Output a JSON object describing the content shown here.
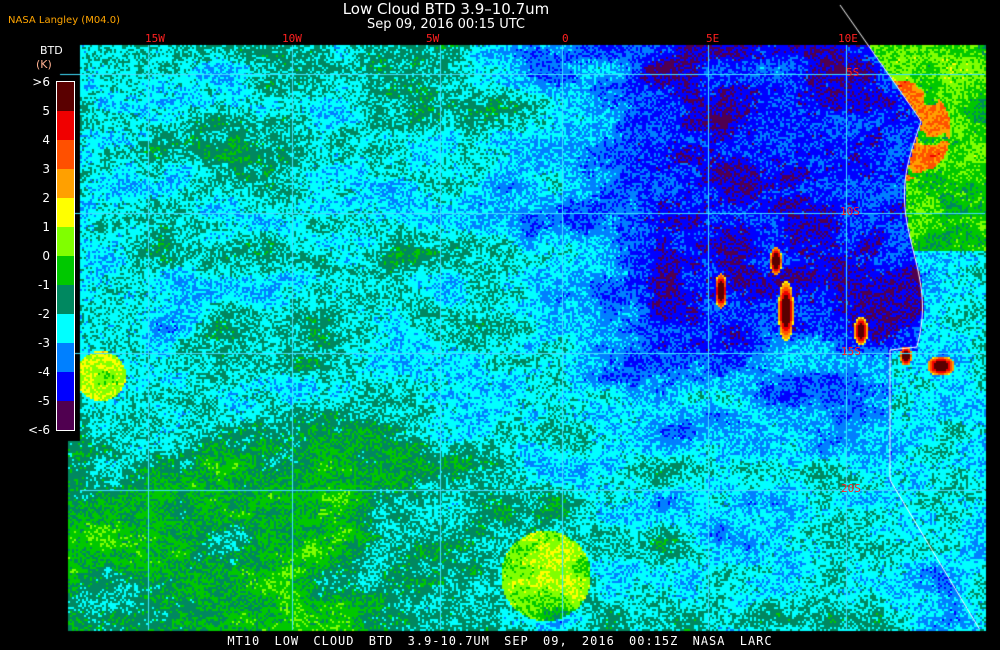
{
  "header": {
    "title": "Low Cloud BTD 3.9–10.7um",
    "subtitle": "Sep 09, 2016 00:15 UTC",
    "producer": "NASA Langley (M04.0)"
  },
  "grid": {
    "longitudes": [
      "15W",
      "10W",
      "5W",
      "0",
      "5E",
      "10E"
    ],
    "latitudes": [
      "5S",
      "10S",
      "15S",
      "20S"
    ],
    "line_color": "#40e0ff",
    "label_color": "#ff2020",
    "coastline_color": "#ffffff"
  },
  "legend": {
    "title": "BTD",
    "unit": "(K)",
    "labels": [
      ">6",
      "5",
      "4",
      "3",
      "2",
      "1",
      "0",
      "-1",
      "-2",
      "-3",
      "-4",
      "-5",
      "<-6"
    ],
    "colors": [
      "#5a0000",
      "#f00000",
      "#ff5000",
      "#ffa000",
      "#ffff00",
      "#80ff00",
      "#00c800",
      "#008860",
      "#00ffff",
      "#0080ff",
      "#0000ff",
      "#500050"
    ]
  },
  "footer": "MT10  LOW CLOUD BTD 3.9-10.7UM   SEP 09, 2016 00:15Z   NASA LARC"
}
